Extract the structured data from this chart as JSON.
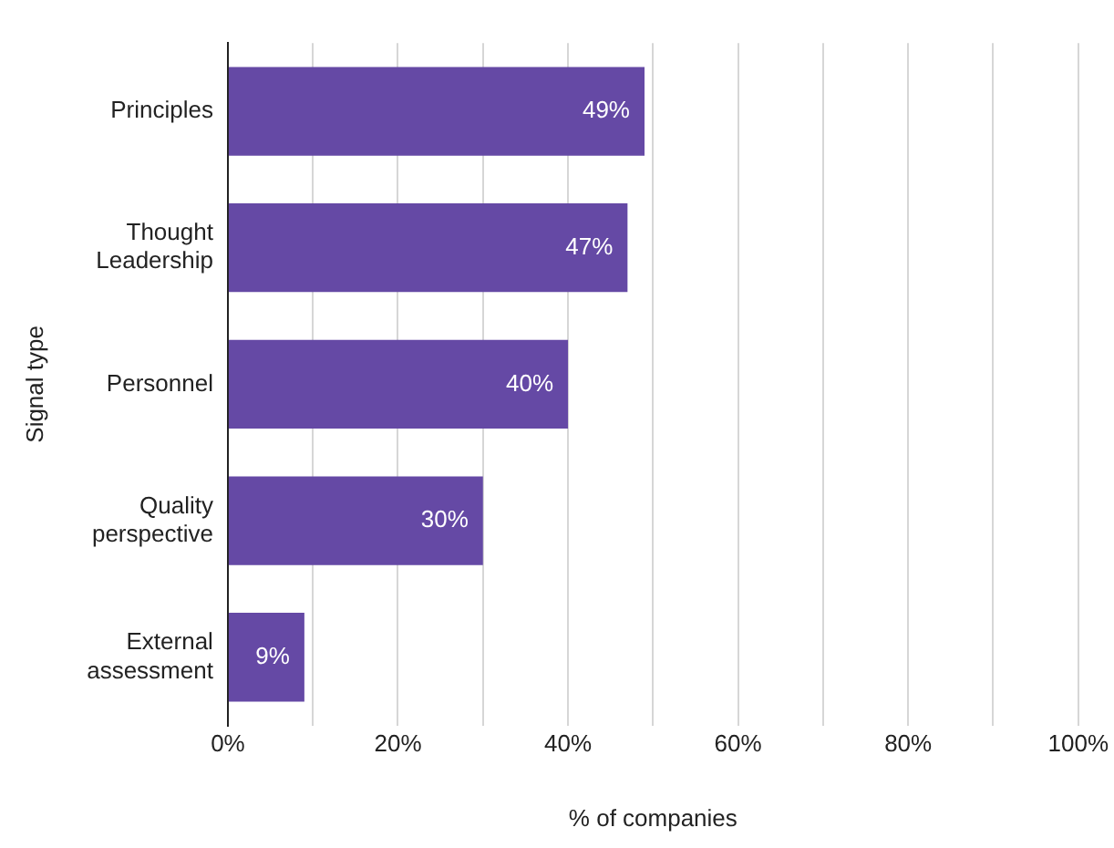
{
  "chart_data": {
    "type": "bar",
    "orientation": "horizontal",
    "xlabel": "% of companies",
    "ylabel": "Signal type",
    "categories": [
      "Principles",
      "Thought Leadership",
      "Personnel",
      "Quality perspective",
      "External assessment"
    ],
    "values": [
      49,
      47,
      40,
      30,
      9
    ],
    "color": "#6549a5",
    "value_labels": [
      "49%",
      "47%",
      "40%",
      "30%",
      "9%"
    ],
    "xlim": [
      0,
      100
    ],
    "xticks": [
      {
        "value": 0,
        "label": "0%"
      },
      {
        "value": 10,
        "label": null
      },
      {
        "value": 20,
        "label": "20%"
      },
      {
        "value": 30,
        "label": null
      },
      {
        "value": 40,
        "label": "40%"
      },
      {
        "value": 50,
        "label": null
      },
      {
        "value": 60,
        "label": "60%"
      },
      {
        "value": 70,
        "label": null
      },
      {
        "value": 80,
        "label": "80%"
      },
      {
        "value": 90,
        "label": null
      },
      {
        "value": 100,
        "label": "100%"
      }
    ],
    "grid": "x",
    "legend": false
  }
}
